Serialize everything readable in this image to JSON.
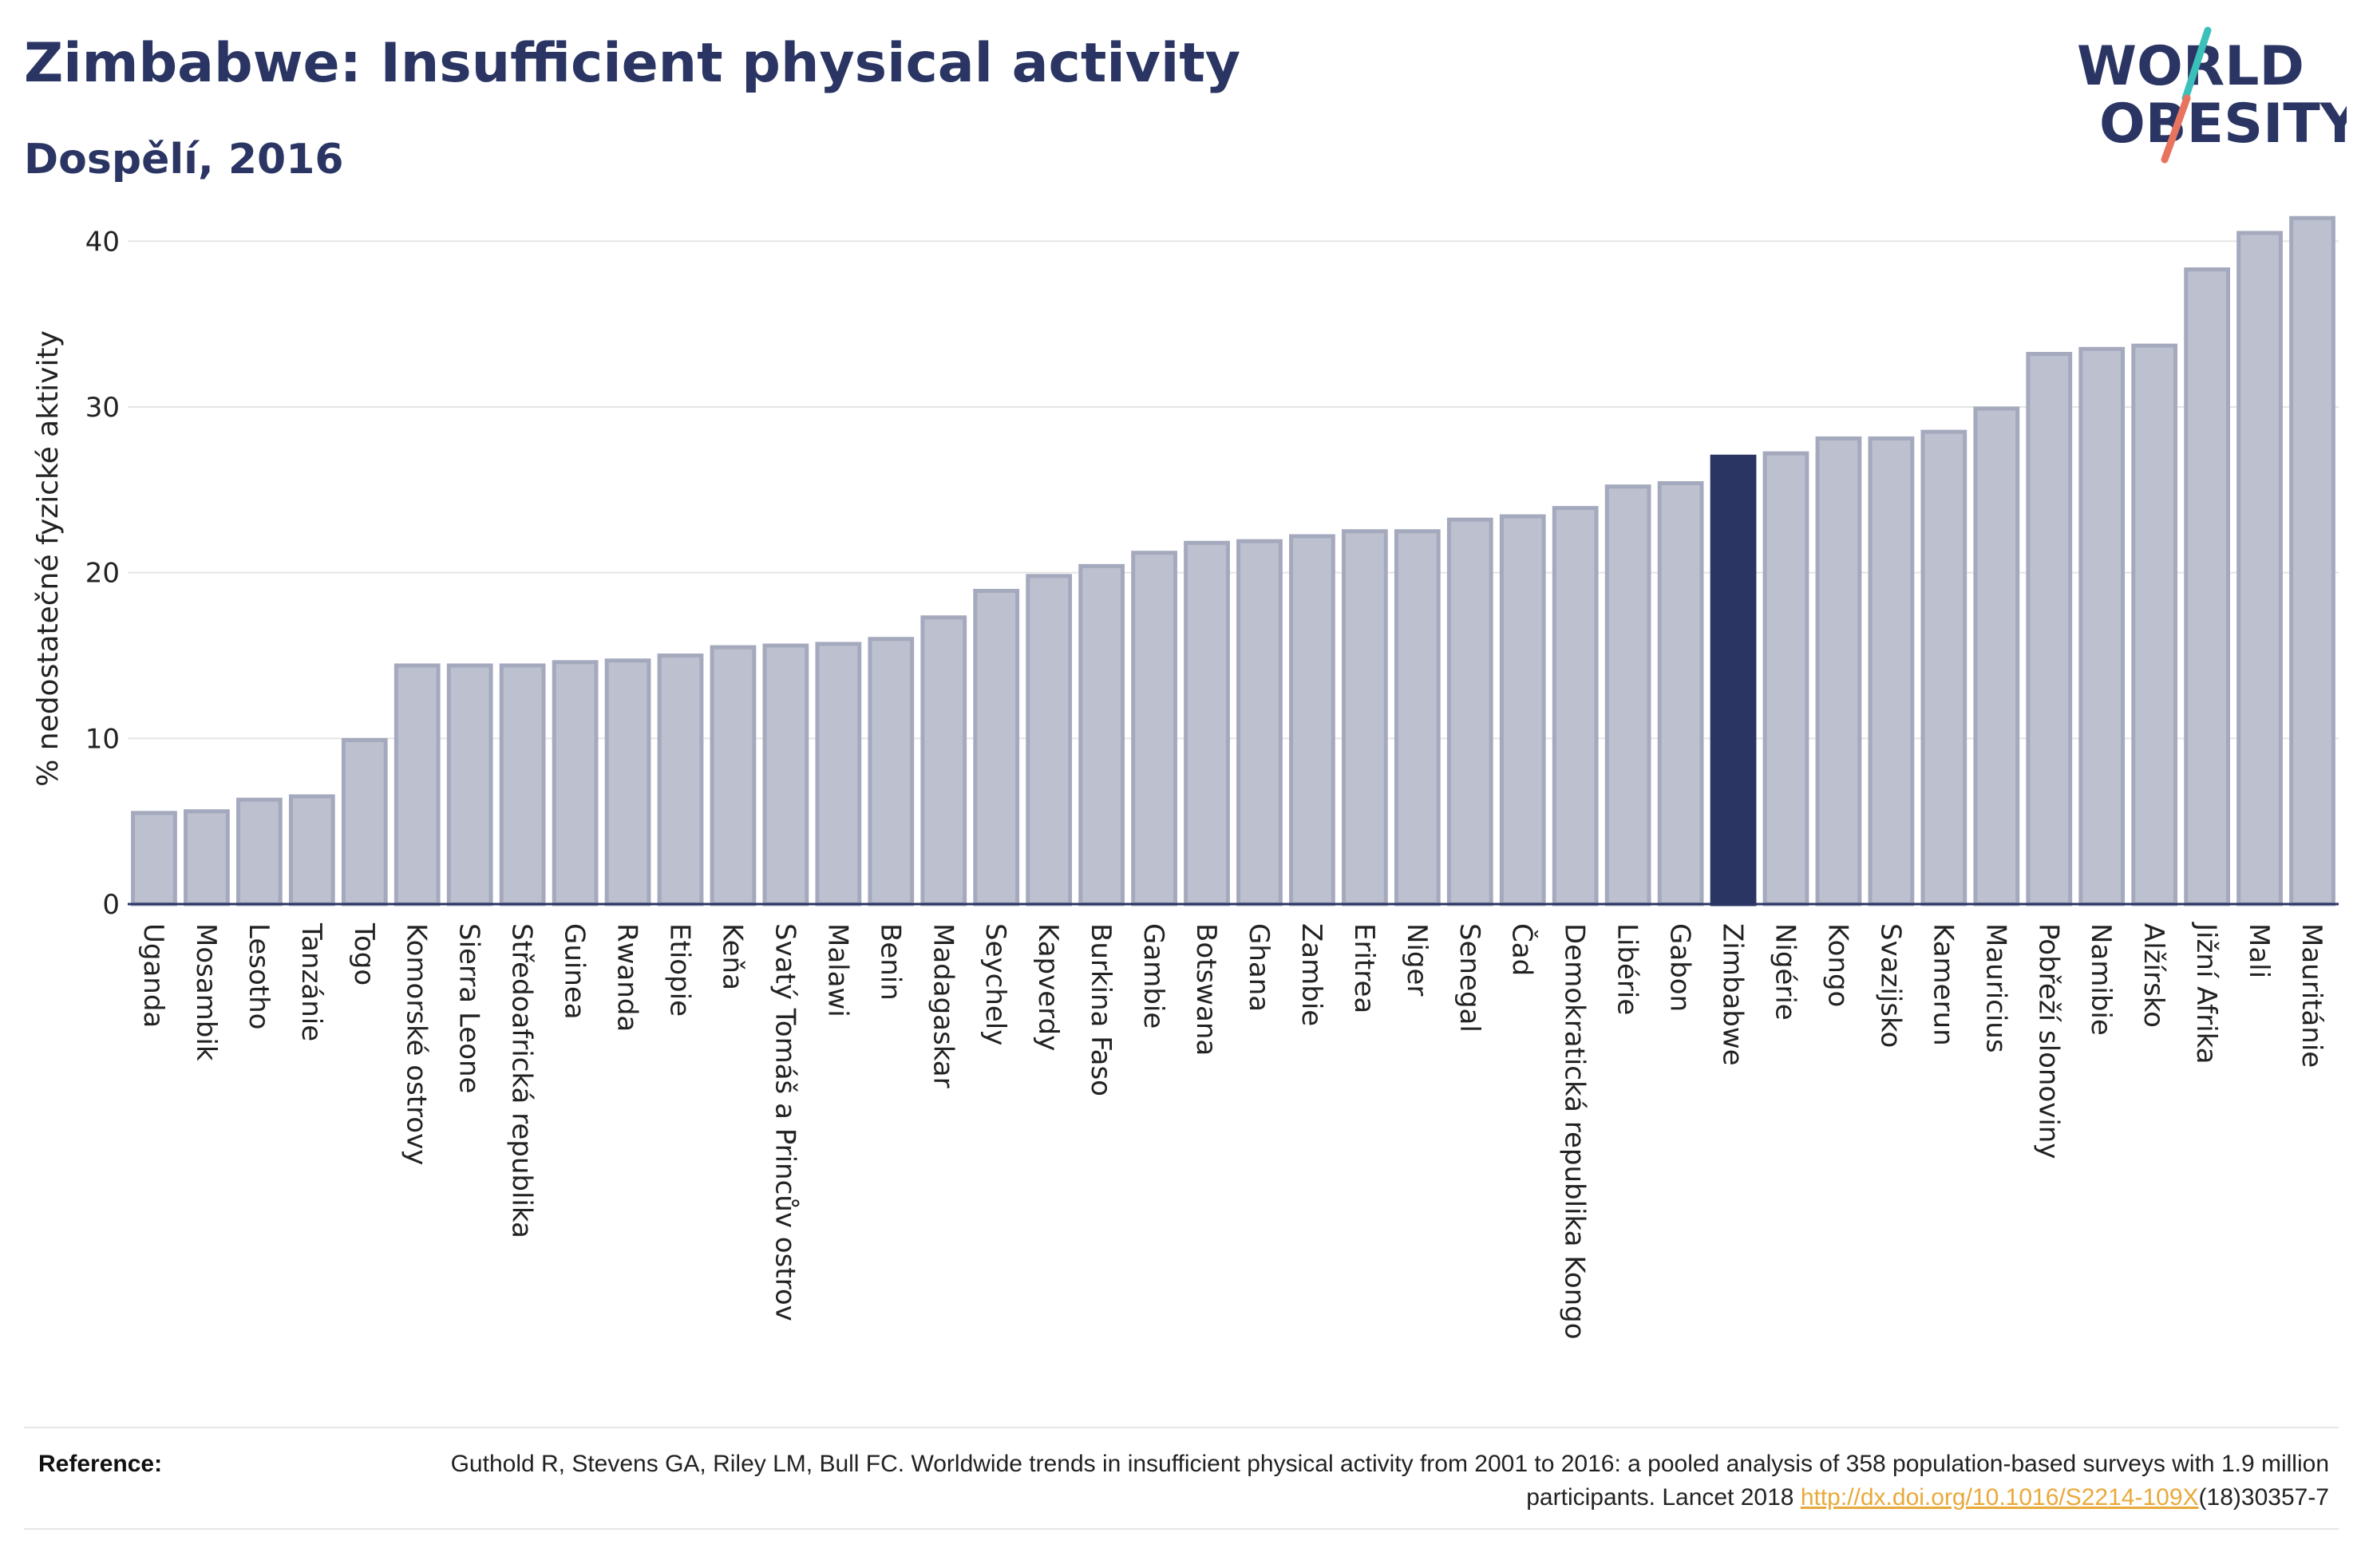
{
  "title": "Zimbabwe: Insufficient physical activity",
  "subtitle": "Dospělí, 2016",
  "logo": {
    "line1": "WORLD",
    "line2": "OBESITY"
  },
  "reference": {
    "label": "Reference:",
    "text_before": "Guthold R, Stevens GA, Riley LM, Bull FC. Worldwide trends in insufficient physical activity from 2001 to 2016: a pooled analysis of 358 population-based surveys with 1.9 million participants. Lancet 2018 ",
    "link": "http://dx.doi.org/10.1016/S2214-109X",
    "text_after": "(18)30357-7"
  },
  "colors": {
    "bar": "#bcc0cf",
    "bar_border": "#a4a9bd",
    "highlight": "#2a3563",
    "title": "#2a3563",
    "link": "#e8a93a",
    "logo_teal": "#3bbfb9",
    "logo_coral": "#e8735e"
  },
  "chart_data": {
    "type": "bar",
    "ylabel": "% nedostatečné fyzické aktivity",
    "xlabel": "",
    "ylim": [
      0,
      43
    ],
    "yticks": [
      0,
      10,
      20,
      30,
      40
    ],
    "grid": true,
    "highlight": "Zimbabwe",
    "categories": [
      "Uganda",
      "Mosambik",
      "Lesotho",
      "Tanzánie",
      "Togo",
      "Komorské ostrovy",
      "Sierra Leone",
      "Středoafrická republika",
      "Guinea",
      "Rwanda",
      "Etiopie",
      "Keňa",
      "Svatý Tomáš a Princův ostrov",
      "Malawi",
      "Benin",
      "Madagaskar",
      "Seychely",
      "Kapverdy",
      "Burkina Faso",
      "Gambie",
      "Botswana",
      "Ghana",
      "Zambie",
      "Eritrea",
      "Niger",
      "Senegal",
      "Čad",
      "Demokratická republika Kongo",
      "Libérie",
      "Gabon",
      "Zimbabwe",
      "Nigérie",
      "Kongo",
      "Svazijsko",
      "Kamerun",
      "Mauricius",
      "Pobřeží slonoviny",
      "Namibie",
      "Alžírsko",
      "Jižní Afrika",
      "Mali",
      "Mauritánie"
    ],
    "values": [
      5.5,
      5.6,
      6.3,
      6.5,
      9.9,
      14.4,
      14.4,
      14.4,
      14.6,
      14.7,
      15.0,
      15.5,
      15.6,
      15.7,
      16.0,
      17.3,
      18.9,
      19.8,
      20.4,
      21.2,
      21.8,
      21.9,
      22.2,
      22.5,
      22.5,
      23.2,
      23.4,
      23.9,
      25.2,
      25.4,
      27.0,
      27.2,
      28.1,
      28.1,
      28.5,
      29.9,
      33.2,
      33.5,
      33.7,
      38.3,
      40.5,
      41.4
    ]
  }
}
